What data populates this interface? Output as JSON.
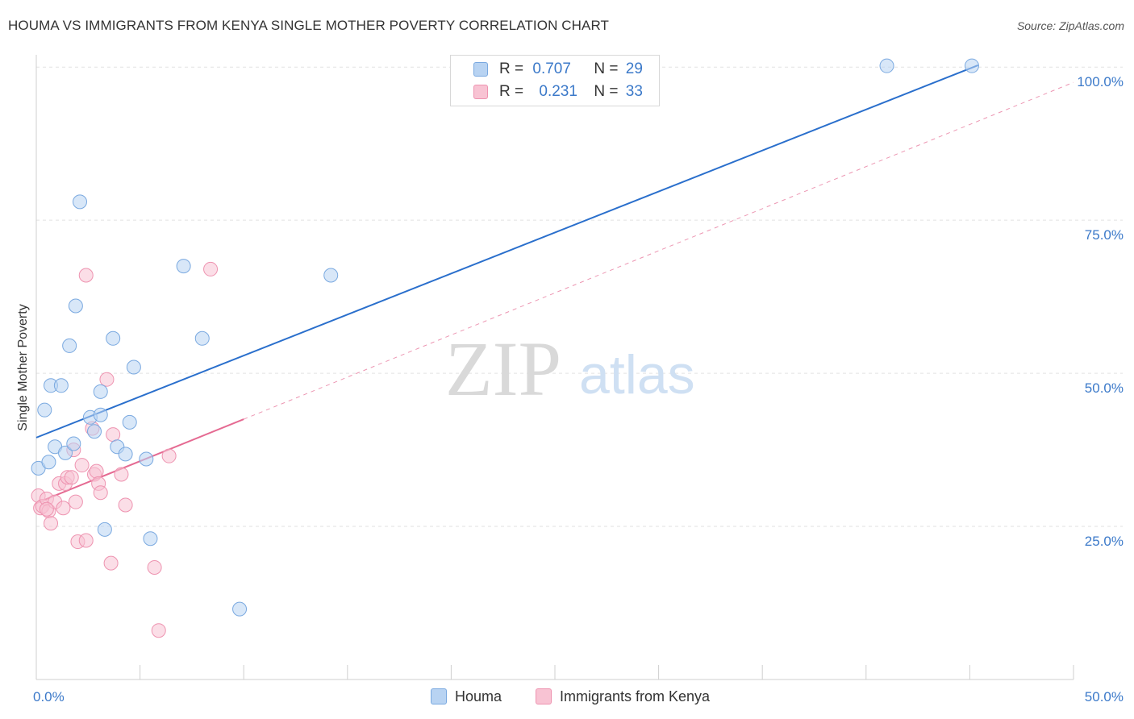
{
  "title": "HOUMA VS IMMIGRANTS FROM KENYA SINGLE MOTHER POVERTY CORRELATION CHART",
  "source": "Source: ZipAtlas.com",
  "watermark": {
    "zip": "ZIP",
    "atlas": "atlas"
  },
  "colors": {
    "houma_fill": "#b8d3f2",
    "houma_stroke": "#7aa9e0",
    "houma_line": "#2a6fcc",
    "kenya_fill": "#f8c3d3",
    "kenya_stroke": "#ee93b0",
    "kenya_line": "#e56a92",
    "tick": "#3b79c9",
    "grid": "#e2e2e2"
  },
  "legend": {
    "rows": [
      {
        "r_label": "R = ",
        "r_value": "0.707",
        "n_label": "N = ",
        "n_value": "29"
      },
      {
        "r_label": "R = ",
        "r_value": "0.231",
        "n_label": "N = ",
        "n_value": "33"
      }
    ],
    "bottom": [
      "Houma",
      "Immigrants from Kenya"
    ]
  },
  "chart_data": {
    "type": "scatter",
    "title": "HOUMA VS IMMIGRANTS FROM KENYA SINGLE MOTHER POVERTY CORRELATION CHART",
    "xlabel": "",
    "ylabel": "Single Mother Poverty",
    "xlim": [
      0,
      50
    ],
    "ylim": [
      0,
      102
    ],
    "x_tick_labels": [
      {
        "value": 0,
        "label": "0.0%"
      },
      {
        "value": 50,
        "label": "50.0%"
      }
    ],
    "y_tick_labels": [
      {
        "value": 25,
        "label": "25.0%"
      },
      {
        "value": 50,
        "label": "50.0%"
      },
      {
        "value": 75,
        "label": "75.0%"
      },
      {
        "value": 100,
        "label": "100.0%"
      }
    ],
    "series": [
      {
        "name": "Houma",
        "r": 0.707,
        "n": 29,
        "trend": {
          "x": [
            0,
            45.4
          ],
          "y": [
            39.5,
            100.3
          ],
          "style": "solid"
        },
        "points": [
          [
            0.1,
            34.5
          ],
          [
            0.4,
            44.0
          ],
          [
            0.6,
            35.5
          ],
          [
            0.7,
            48.0
          ],
          [
            0.9,
            38.0
          ],
          [
            1.2,
            48.0
          ],
          [
            1.4,
            37.0
          ],
          [
            1.6,
            54.5
          ],
          [
            1.8,
            38.5
          ],
          [
            1.9,
            61.0
          ],
          [
            2.1,
            78.0
          ],
          [
            2.6,
            42.8
          ],
          [
            2.8,
            40.5
          ],
          [
            3.1,
            43.2
          ],
          [
            3.1,
            47.0
          ],
          [
            3.3,
            24.5
          ],
          [
            3.7,
            55.7
          ],
          [
            3.9,
            38.0
          ],
          [
            4.3,
            36.8
          ],
          [
            4.5,
            42.0
          ],
          [
            4.7,
            51.0
          ],
          [
            5.3,
            36.0
          ],
          [
            5.5,
            23.0
          ],
          [
            7.1,
            67.5
          ],
          [
            8.0,
            55.7
          ],
          [
            9.8,
            11.5
          ],
          [
            14.2,
            66.0
          ],
          [
            41.0,
            100.2
          ],
          [
            45.1,
            100.2
          ]
        ]
      },
      {
        "name": "Immigrants from Kenya",
        "r": 0.231,
        "n": 33,
        "trend": {
          "x": [
            0,
            10.0
          ],
          "y": [
            28.8,
            42.5
          ],
          "style": "solid"
        },
        "trend_extension": {
          "x": [
            10.0,
            50
          ],
          "y": [
            42.5,
            97.5
          ],
          "style": "dashed"
        },
        "points": [
          [
            0.1,
            30.0
          ],
          [
            0.2,
            28.0
          ],
          [
            0.3,
            28.3
          ],
          [
            0.5,
            29.5
          ],
          [
            0.6,
            27.5
          ],
          [
            0.7,
            25.5
          ],
          [
            0.9,
            29.0
          ],
          [
            1.1,
            32.0
          ],
          [
            1.3,
            28.0
          ],
          [
            1.4,
            32.0
          ],
          [
            1.5,
            33.0
          ],
          [
            1.7,
            33.0
          ],
          [
            1.8,
            37.5
          ],
          [
            1.9,
            29.0
          ],
          [
            2.0,
            22.5
          ],
          [
            2.2,
            35.0
          ],
          [
            2.4,
            22.7
          ],
          [
            2.4,
            66.0
          ],
          [
            2.7,
            41.0
          ],
          [
            2.8,
            33.5
          ],
          [
            2.9,
            34.0
          ],
          [
            3.0,
            32.0
          ],
          [
            3.1,
            30.5
          ],
          [
            3.4,
            49.0
          ],
          [
            3.6,
            19.0
          ],
          [
            3.7,
            40.0
          ],
          [
            4.1,
            33.5
          ],
          [
            4.3,
            28.5
          ],
          [
            5.7,
            18.3
          ],
          [
            5.9,
            8.0
          ],
          [
            6.4,
            36.5
          ],
          [
            8.4,
            67.0
          ],
          [
            0.5,
            27.8
          ]
        ]
      }
    ]
  }
}
